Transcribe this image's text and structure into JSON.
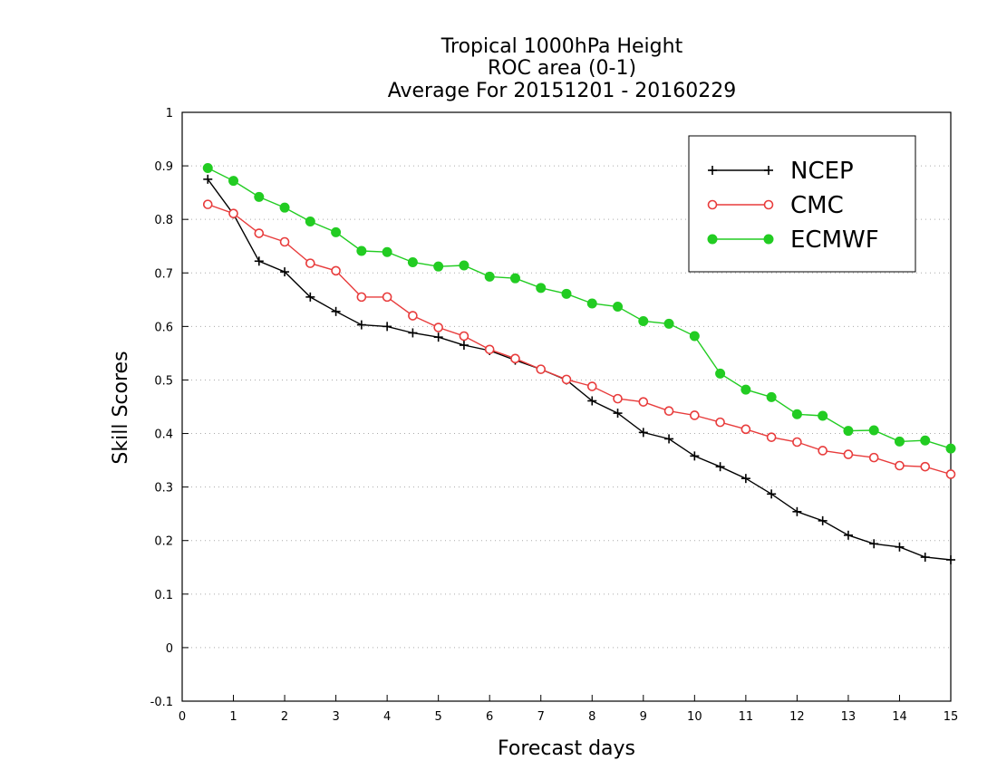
{
  "chart_data": {
    "type": "line",
    "title": "Tropical 1000hPa Height",
    "subtitle": "ROC area (0-1)",
    "subtitle2": "Average For 20151201 - 20160229",
    "xlabel": "Forecast days",
    "ylabel": "Skill Scores",
    "xlim": [
      0,
      15
    ],
    "ylim": [
      -0.1,
      1
    ],
    "xticks": [
      "0",
      "1",
      "2",
      "3",
      "4",
      "5",
      "6",
      "7",
      "8",
      "9",
      "10",
      "11",
      "12",
      "13",
      "14",
      "15"
    ],
    "yticks": [
      "-0.1",
      "0",
      "0.1",
      "0.2",
      "0.3",
      "0.4",
      "0.5",
      "0.6",
      "0.7",
      "0.8",
      "0.9",
      "1"
    ],
    "grid": "horizontal dotted",
    "legend_position": "top-right",
    "x": [
      0.5,
      1,
      1.5,
      2,
      2.5,
      3,
      3.5,
      4,
      4.5,
      5,
      5.5,
      6,
      6.5,
      7,
      7.5,
      8,
      8.5,
      9,
      9.5,
      10,
      10.5,
      11,
      11.5,
      12,
      12.5,
      13,
      13.5,
      14,
      14.5,
      15
    ],
    "series": [
      {
        "name": "NCEP",
        "color": "#000000",
        "marker": "plus",
        "values": [
          0.875,
          0.81,
          0.722,
          0.702,
          0.655,
          0.628,
          0.603,
          0.6,
          0.588,
          0.58,
          0.565,
          0.555,
          0.537,
          0.52,
          0.5,
          0.461,
          0.438,
          0.402,
          0.39,
          0.358,
          0.338,
          0.316,
          0.287,
          0.254,
          0.237,
          0.21,
          0.194,
          0.188,
          0.169,
          0.164
        ]
      },
      {
        "name": "CMC",
        "color": "#e83c3c",
        "marker": "open-circle",
        "values": [
          0.828,
          0.811,
          0.774,
          0.758,
          0.718,
          0.704,
          0.655,
          0.655,
          0.62,
          0.598,
          0.582,
          0.557,
          0.54,
          0.52,
          0.501,
          0.488,
          0.465,
          0.459,
          0.442,
          0.434,
          0.421,
          0.408,
          0.393,
          0.384,
          0.368,
          0.361,
          0.355,
          0.34,
          0.338,
          0.324
        ]
      },
      {
        "name": "ECMWF",
        "color": "#22cc22",
        "marker": "filled-circle",
        "values": [
          0.896,
          0.872,
          0.842,
          0.822,
          0.796,
          0.776,
          0.741,
          0.739,
          0.72,
          0.712,
          0.714,
          0.693,
          0.69,
          0.672,
          0.661,
          0.643,
          0.637,
          0.61,
          0.605,
          0.582,
          0.512,
          0.482,
          0.468,
          0.436,
          0.433,
          0.405,
          0.406,
          0.385,
          0.387,
          0.372
        ]
      }
    ]
  }
}
